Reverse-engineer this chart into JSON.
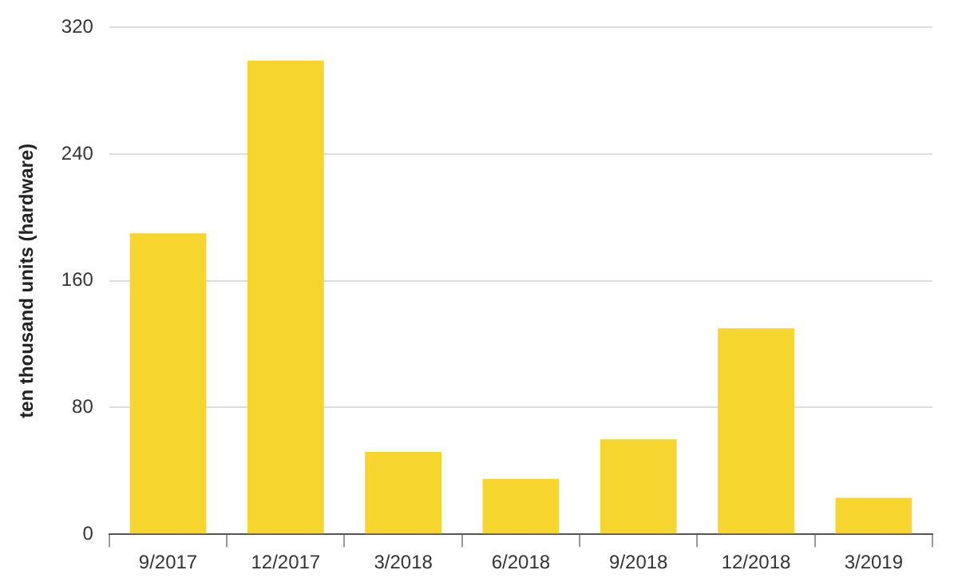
{
  "chart_data": {
    "type": "bar",
    "ylabel": "ten thousand units (hardware)",
    "categories": [
      "9/2017",
      "12/2017",
      "3/2018",
      "6/2018",
      "9/2018",
      "12/2018",
      "3/2019"
    ],
    "values": [
      190,
      299,
      52,
      35,
      60,
      130,
      23
    ],
    "color": "#f6d52f",
    "ylim": [
      0,
      320
    ],
    "yticks": [
      0,
      80,
      160,
      240,
      320
    ],
    "grid": "y",
    "legend": false
  }
}
